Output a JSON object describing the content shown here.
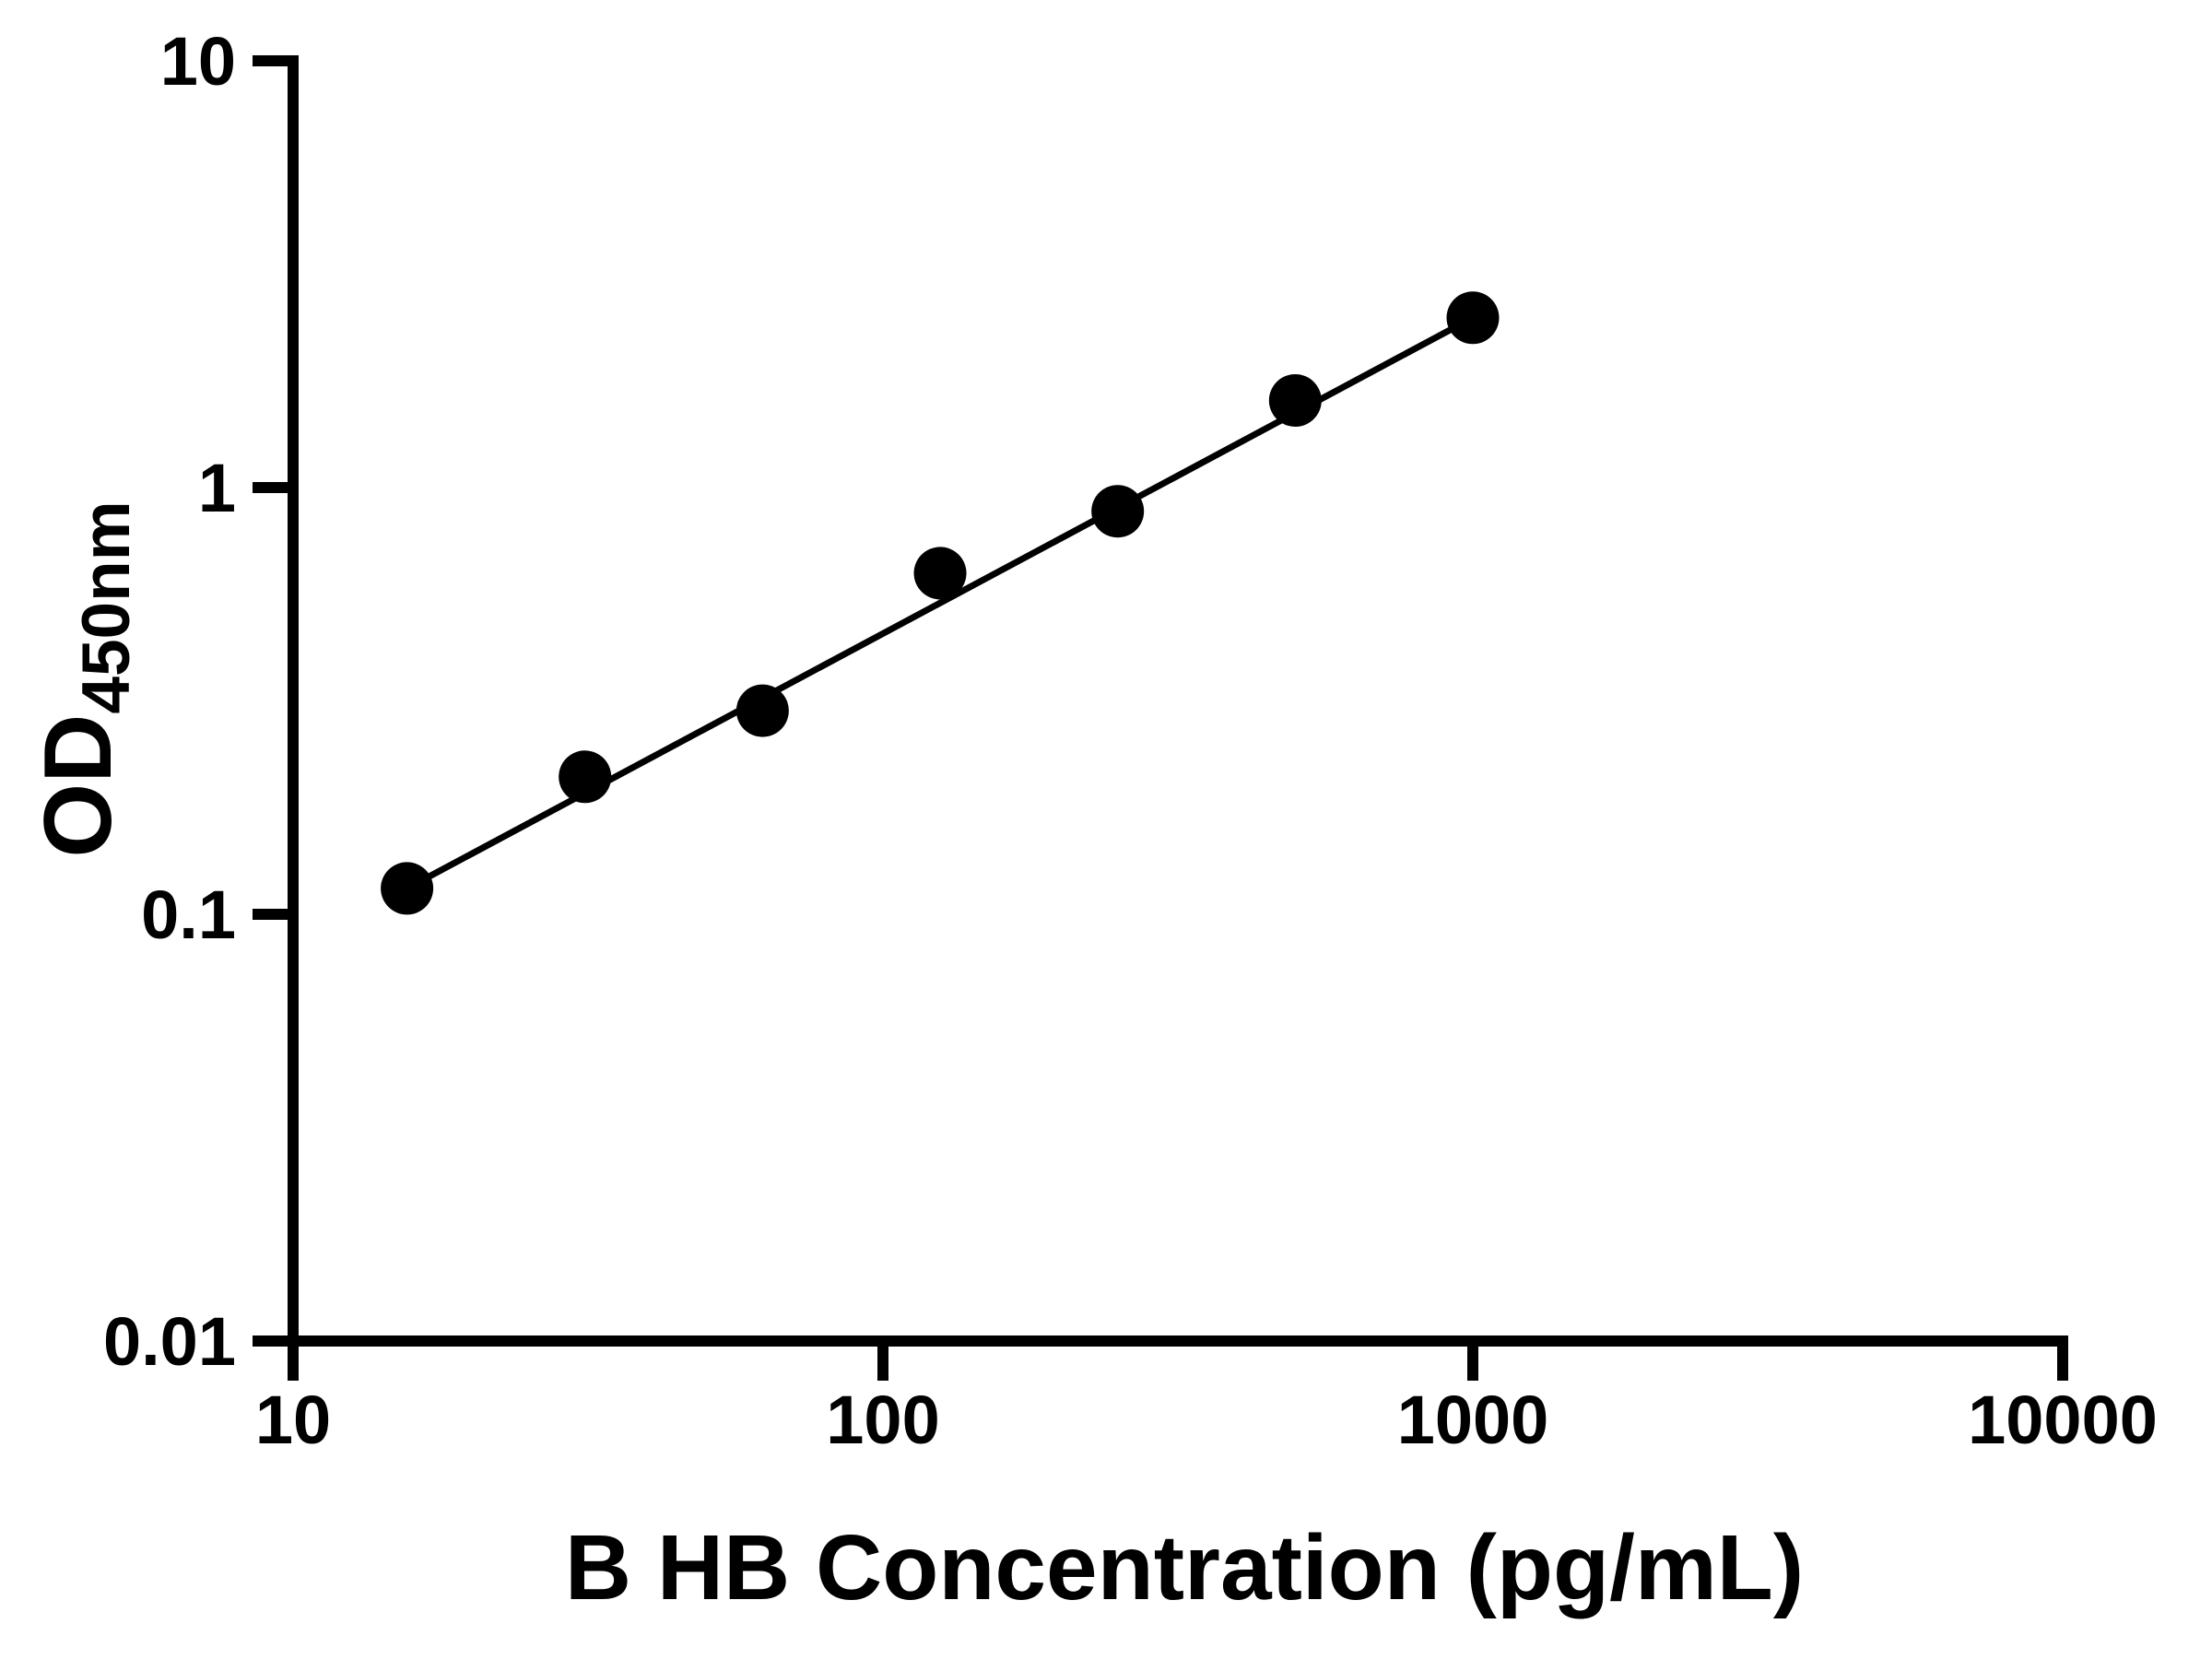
{
  "chart_data": {
    "type": "scatter",
    "title": "",
    "xlabel": "B HB Concentration (pg/mL)",
    "ylabel_main": "OD",
    "ylabel_sub": "450nm",
    "x_scale": "log10",
    "y_scale": "log10",
    "x_range": [
      10,
      10000
    ],
    "y_range": [
      0.01,
      10
    ],
    "x_ticks": [
      10,
      100,
      1000,
      10000
    ],
    "x_tick_labels": [
      "10",
      "100",
      "1000",
      "10000"
    ],
    "y_ticks": [
      10,
      1,
      0.1,
      0.01
    ],
    "y_tick_labels": [
      "10",
      "1",
      "0.1",
      "0.01"
    ],
    "grid": "off",
    "legend": null,
    "points": [
      {
        "x": 15.6,
        "y": 0.115
      },
      {
        "x": 31.25,
        "y": 0.21
      },
      {
        "x": 62.5,
        "y": 0.3
      },
      {
        "x": 125,
        "y": 0.63
      },
      {
        "x": 250,
        "y": 0.88
      },
      {
        "x": 500,
        "y": 1.6
      },
      {
        "x": 1000,
        "y": 2.5
      }
    ],
    "fit_line": {
      "x1": 15.6,
      "y1": 0.115,
      "x2": 1000,
      "y2": 2.5
    },
    "marker": {
      "shape": "circle",
      "color": "#000000"
    },
    "line_color": "#000000",
    "axis_color": "#000000",
    "background_color": "#ffffff"
  }
}
